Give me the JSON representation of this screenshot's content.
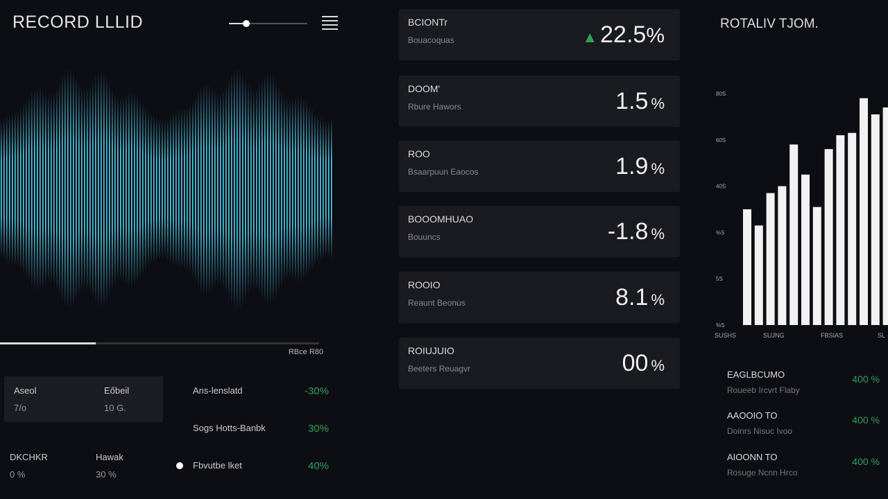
{
  "header": {
    "title": "RECORD LLLID",
    "volume": 0.22
  },
  "waveform": {
    "color": "#4fd4ee",
    "progress": 0.3,
    "time_label": "RBce R80"
  },
  "stats": [
    {
      "label": "Aseol",
      "value": "7/o"
    },
    {
      "label": "Eőbeil",
      "value": "10 G."
    },
    {
      "label": "DKCHKR",
      "value": "0 %"
    },
    {
      "label": "Hawak",
      "value": "30 %"
    }
  ],
  "rows": [
    {
      "label": "Ans-lenslatd",
      "value": "-30%"
    },
    {
      "label": "Sogs Hotts-Banbk",
      "value": "30%"
    },
    {
      "label": "Fbvutbe lket",
      "value": "40%"
    }
  ],
  "cards": [
    {
      "title": "BCIONTr",
      "subtitle": "Bouacoquas",
      "value": "22.5",
      "unit": "%",
      "trend": "up"
    },
    {
      "title": "DOOM'",
      "subtitle": "Rbure Hawors",
      "value": "1.5",
      "unit": "%"
    },
    {
      "title": "ROO",
      "subtitle": "Bsaarpuun Eaocos",
      "value": "1.9",
      "unit": "%"
    },
    {
      "title": "BOOOMHUAO",
      "subtitle": "Bouuncs",
      "value": "-1.8",
      "unit": "%"
    },
    {
      "title": "ROOIO",
      "subtitle": "Reaunt Beonus",
      "value": "8.1",
      "unit": "%"
    },
    {
      "title": "ROIUJUIO",
      "subtitle": "Beeters Reuagvr",
      "value": "00",
      "unit": "%"
    }
  ],
  "chart_data": {
    "type": "bar",
    "title": "ROTALIV TJOM.",
    "yticks": [
      "80S",
      "60S",
      "40S",
      "%S",
      "5S",
      "%S"
    ],
    "xticks": [
      "SUSHS",
      "SUJNG",
      "FBSIAS",
      "SL"
    ],
    "values": [
      50,
      43,
      57,
      60,
      78,
      65,
      51,
      76,
      82,
      83,
      98,
      91,
      94
    ],
    "ylim": [
      0,
      100
    ],
    "color": "#f2f2f2"
  },
  "right_rows": [
    {
      "label": "EAGLBCUMO",
      "subtitle": "Roueeb Ircvrt Flaby",
      "value": "400 %"
    },
    {
      "label": "AAOOIO TO",
      "subtitle": "Doinrs Nisuc Ivoo",
      "value": "400 %"
    },
    {
      "label": "AIOONN TO",
      "subtitle": "Rosuge Ncnn Hrco",
      "value": "400 %"
    }
  ]
}
